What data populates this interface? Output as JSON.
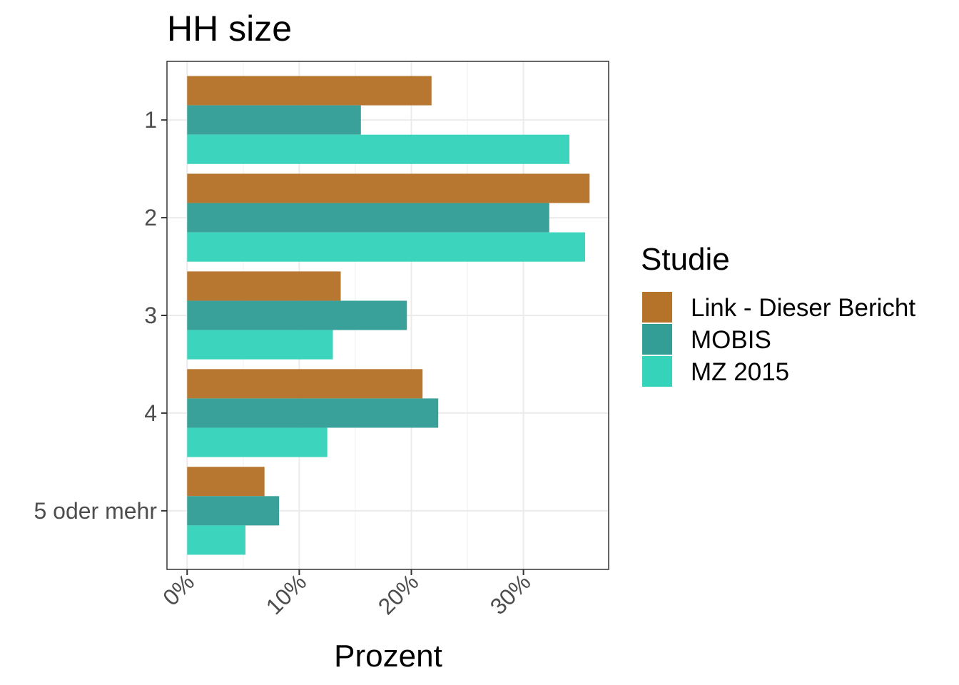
{
  "chart_data": {
    "type": "bar",
    "orientation": "horizontal",
    "title": "HH size",
    "xlabel": "Prozent",
    "ylabel": "",
    "categories": [
      "1",
      "2",
      "3",
      "4",
      "5 oder mehr"
    ],
    "series": [
      {
        "name": "Link - Dieser Bericht",
        "color": "#b5732a",
        "values": [
          21.8,
          35.9,
          13.7,
          21.0,
          6.9
        ]
      },
      {
        "name": "MOBIS",
        "color": "#339e96",
        "values": [
          15.5,
          32.3,
          19.6,
          22.4,
          8.2
        ]
      },
      {
        "name": "MZ 2015",
        "color": "#36d3bb",
        "values": [
          34.1,
          35.5,
          13.0,
          12.5,
          5.2
        ]
      }
    ],
    "xlim": [
      -1.8,
      37.6
    ],
    "xticks": [
      0,
      10,
      20,
      30
    ],
    "xtick_labels": [
      "0%",
      "10%",
      "20%",
      "30%"
    ],
    "grid": true,
    "legend": {
      "title": "Studie",
      "position": "right"
    }
  }
}
